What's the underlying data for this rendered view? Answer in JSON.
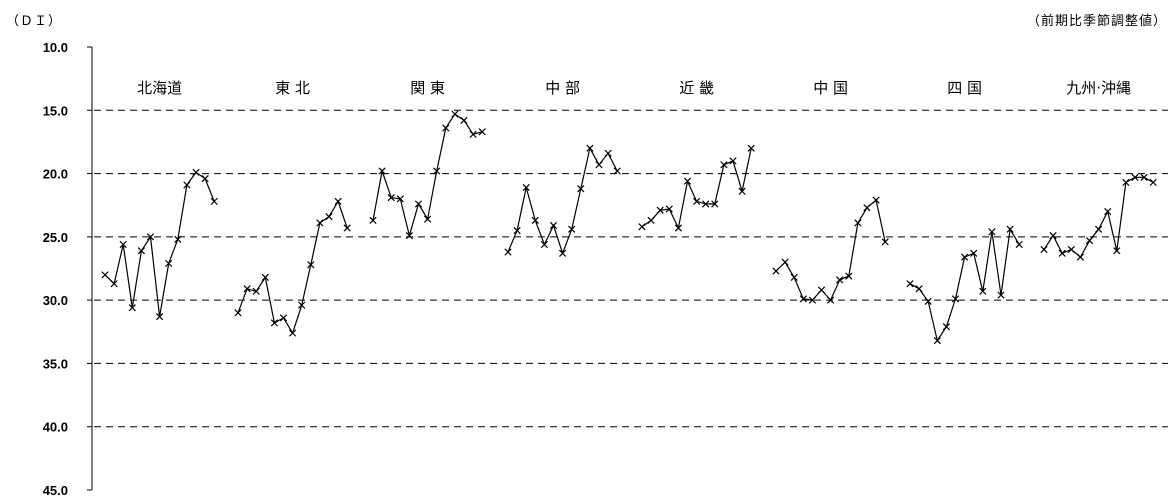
{
  "header": {
    "unit_left": "（ＤＩ）",
    "unit_right": "（前期比季節調整値）"
  },
  "chart_data": {
    "type": "line",
    "ylabel": "（ＤＩ）",
    "y_inverted": true,
    "ylim": [
      10.0,
      45.0
    ],
    "y_ticks": [
      "10.0",
      "15.0",
      "20.0",
      "25.0",
      "30.0",
      "35.0",
      "40.0",
      "45.0"
    ],
    "grid": "dashed horizontal",
    "series": [
      {
        "name": "北海道",
        "values": [
          28.0,
          28.7,
          25.6,
          30.6,
          26.1,
          25.0,
          31.3,
          27.1,
          25.2,
          20.9,
          19.9,
          20.4,
          22.2
        ]
      },
      {
        "name": "東 北",
        "values": [
          31.0,
          29.1,
          29.3,
          28.2,
          31.8,
          31.4,
          32.6,
          30.4,
          27.2,
          23.9,
          23.4,
          22.2,
          24.3
        ]
      },
      {
        "name": "関 東",
        "values": [
          23.7,
          19.8,
          21.9,
          22.0,
          24.9,
          22.4,
          23.6,
          19.8,
          16.4,
          15.3,
          15.8,
          16.9,
          16.7
        ]
      },
      {
        "name": "中 部",
        "values": [
          26.2,
          24.5,
          21.1,
          23.7,
          25.6,
          24.1,
          26.3,
          24.4,
          21.2,
          18.0,
          19.3,
          18.4,
          19.8
        ]
      },
      {
        "name": "近 畿",
        "values": [
          24.2,
          23.7,
          22.9,
          22.8,
          24.3,
          20.6,
          22.2,
          22.4,
          22.4,
          19.3,
          19.0,
          21.4,
          18.0
        ]
      },
      {
        "name": "中 国",
        "values": [
          27.7,
          27.0,
          28.2,
          29.9,
          30.0,
          29.2,
          30.0,
          28.4,
          28.1,
          23.9,
          22.7,
          22.1,
          25.4
        ]
      },
      {
        "name": "四 国",
        "values": [
          28.7,
          29.1,
          30.1,
          33.2,
          32.1,
          29.9,
          26.6,
          26.3,
          29.3,
          24.6,
          29.6,
          24.4,
          25.6
        ]
      },
      {
        "name": "九州·沖縄",
        "values": [
          26.0,
          24.9,
          26.3,
          26.0,
          26.6,
          25.3,
          24.4,
          23.0,
          26.1,
          20.7,
          20.3,
          20.3,
          20.7
        ]
      }
    ]
  }
}
